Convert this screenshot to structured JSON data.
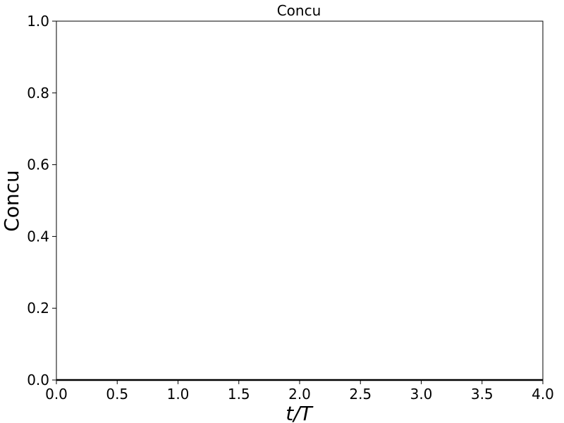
{
  "chart_data": {
    "type": "line",
    "title": "Concu",
    "xlabel": "t/T",
    "ylabel": "Concu",
    "xlim": [
      0.0,
      4.0
    ],
    "ylim": [
      0.0,
      1.0
    ],
    "x_ticks": [
      0.0,
      0.5,
      1.0,
      1.5,
      2.0,
      2.5,
      3.0,
      3.5,
      4.0
    ],
    "x_tick_labels": [
      "0.0",
      "0.5",
      "1.0",
      "1.5",
      "2.0",
      "2.5",
      "3.0",
      "3.5",
      "4.0"
    ],
    "y_ticks": [
      0.0,
      0.2,
      0.4,
      0.6,
      0.8,
      1.0
    ],
    "y_tick_labels": [
      "0.0",
      "0.2",
      "0.4",
      "0.6",
      "0.8",
      "1.0"
    ],
    "grid": false,
    "series": [
      {
        "color": "#000000",
        "x": [
          0.0,
          4.0
        ],
        "y": [
          0.0,
          0.0
        ]
      }
    ]
  }
}
